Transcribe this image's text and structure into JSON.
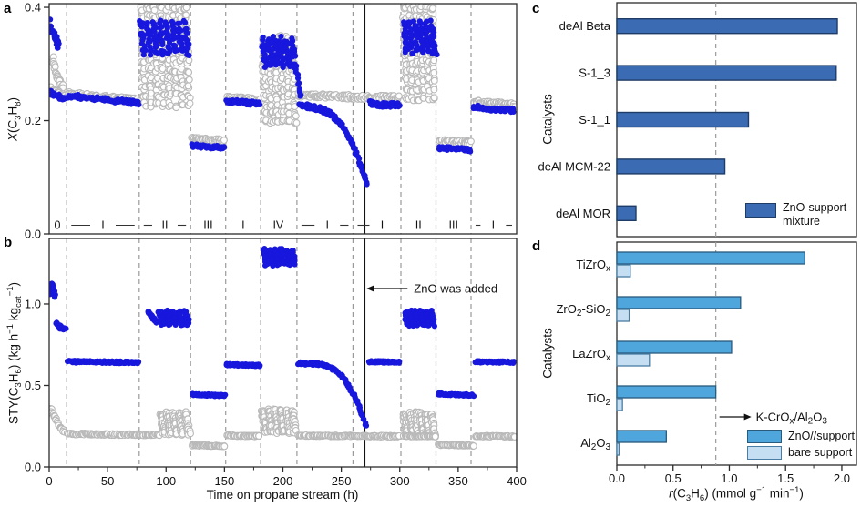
{
  "panel_letters": {
    "a": "a",
    "b": "b",
    "c": "c",
    "d": "d"
  },
  "colors": {
    "blue_point": "#1717dd",
    "gray_point": "#b9b9b9",
    "dashed": "#9a9a9a",
    "axis": "#2b2b2b",
    "c_bar_fill": "#3b6cb3",
    "c_bar_stroke": "#1f3c66",
    "d_main_fill": "#4fa6dc",
    "d_main_stroke": "#2a5a7c",
    "d_bare_fill": "#c5def1",
    "d_bare_stroke": "#4a7da3"
  },
  "chart_data": [
    {
      "id": "a",
      "type": "scatter",
      "ylabel_html": "<i>X</i>(C<sub>3</sub>H<sub>8</sub>)",
      "ylim": [
        0,
        0.4065
      ],
      "yticks": [
        0,
        0.2,
        0.4
      ],
      "ytick_labels": [
        "0.0",
        "0.2",
        "0.4"
      ],
      "xlim": [
        0,
        400
      ],
      "segment_boundaries": [
        15,
        77,
        121,
        151,
        181,
        212,
        260,
        301,
        331,
        361
      ],
      "zno_line_x": 270,
      "segment_labels": [
        {
          "text": "0",
          "t": 7
        },
        {
          "text": "I",
          "t": 46
        },
        {
          "text": "II",
          "t": 99
        },
        {
          "text": "III",
          "t": 136
        },
        {
          "text": "I",
          "t": 166
        },
        {
          "text": "IV",
          "t": 196
        },
        {
          "text": "I",
          "t": 238
        },
        {
          "text": "I",
          "t": 285
        },
        {
          "text": "II",
          "t": 316
        },
        {
          "text": "III",
          "t": 346
        },
        {
          "text": "I",
          "t": 380
        }
      ],
      "gray_segments": [
        {
          "kind": "path",
          "pts": [
            [
              3,
              0.31
            ],
            [
              6,
              0.285
            ],
            [
              9,
              0.268
            ],
            [
              12,
              0.26
            ]
          ],
          "n": 26,
          "j": 0.006
        },
        {
          "kind": "path",
          "pts": [
            [
              1,
              0.257
            ],
            [
              8,
              0.248
            ],
            [
              14,
              0.242
            ]
          ],
          "n": 20,
          "j": 0.004
        },
        {
          "kind": "path",
          "pts": [
            [
              16,
              0.247
            ],
            [
              45,
              0.241
            ],
            [
              77,
              0.235
            ]
          ],
          "n": 90,
          "j": 0.0045
        },
        {
          "kind": "comb",
          "t0": 78,
          "t1": 121,
          "cycles": 8,
          "top": 0.398,
          "bot": 0.228,
          "streaks": 3,
          "n": 12,
          "j": 0.005
        },
        {
          "kind": "path",
          "pts": [
            [
              122,
              0.168
            ],
            [
              150,
              0.164
            ]
          ],
          "n": 50,
          "j": 0.003
        },
        {
          "kind": "path",
          "pts": [
            [
              152,
              0.24
            ],
            [
              180,
              0.236
            ]
          ],
          "n": 50,
          "j": 0.0035
        },
        {
          "kind": "comb",
          "t0": 182,
          "t1": 212,
          "cycles": 6,
          "top": 0.345,
          "bot": 0.198,
          "streaks": 3,
          "n": 11,
          "j": 0.005
        },
        {
          "kind": "path",
          "pts": [
            [
              213,
              0.245
            ],
            [
              255,
              0.242
            ],
            [
              300,
              0.24
            ]
          ],
          "n": 140,
          "j": 0.004
        },
        {
          "kind": "comb",
          "t0": 303,
          "t1": 331,
          "cycles": 6,
          "top": 0.398,
          "bot": 0.24,
          "streaks": 3,
          "n": 11,
          "j": 0.005
        },
        {
          "kind": "path",
          "pts": [
            [
              333,
              0.164
            ],
            [
              361,
              0.161
            ]
          ],
          "n": 48,
          "j": 0.003
        },
        {
          "kind": "path",
          "pts": [
            [
              363,
              0.233
            ],
            [
              398,
              0.228
            ]
          ],
          "n": 60,
          "j": 0.0035
        }
      ],
      "blue_segments": [
        {
          "kind": "path",
          "pts": [
            [
              1,
              0.374
            ],
            [
              3,
              0.352
            ],
            [
              5,
              0.351
            ],
            [
              8,
              0.331
            ]
          ],
          "n": 26,
          "j": 0.007
        },
        {
          "kind": "path",
          "pts": [
            [
              1,
              0.25
            ],
            [
              8,
              0.243
            ],
            [
              14,
              0.237
            ]
          ],
          "n": 20,
          "j": 0.004
        },
        {
          "kind": "path",
          "pts": [
            [
              16,
              0.244
            ],
            [
              45,
              0.238
            ],
            [
              77,
              0.231
            ]
          ],
          "n": 85,
          "j": 0.004
        },
        {
          "kind": "comb",
          "t0": 78,
          "t1": 121,
          "cycles": 8,
          "top": 0.372,
          "bot": 0.32,
          "streaks": 2,
          "n": 8,
          "j": 0.005
        },
        {
          "kind": "path",
          "pts": [
            [
              122,
              0.156
            ],
            [
              150,
              0.152
            ]
          ],
          "n": 50,
          "j": 0.003
        },
        {
          "kind": "path",
          "pts": [
            [
              152,
              0.234
            ],
            [
              180,
              0.23
            ]
          ],
          "n": 50,
          "j": 0.0035
        },
        {
          "kind": "comb",
          "t0": 182,
          "t1": 212,
          "cycles": 6,
          "top": 0.344,
          "bot": 0.298,
          "streaks": 2,
          "n": 8,
          "j": 0.005
        },
        {
          "kind": "path",
          "pts": [
            [
              210,
              0.3
            ],
            [
              214,
              0.262
            ],
            [
              216,
              0.24
            ]
          ],
          "n": 14,
          "j": 0.005
        },
        {
          "kind": "path",
          "pts": [
            [
              214,
              0.228
            ],
            [
              224,
              0.224
            ],
            [
              232,
              0.22
            ],
            [
              239,
              0.214
            ],
            [
              245,
              0.204
            ],
            [
              250,
              0.192
            ],
            [
              255,
              0.177
            ],
            [
              259,
              0.16
            ],
            [
              263,
              0.142
            ],
            [
              266,
              0.125
            ],
            [
              269,
              0.105
            ],
            [
              272,
              0.088
            ]
          ],
          "n": 120,
          "j": 0.004
        },
        {
          "kind": "path",
          "pts": [
            [
              274,
              0.231
            ],
            [
              285,
              0.228
            ],
            [
              300,
              0.227
            ]
          ],
          "n": 50,
          "j": 0.004
        },
        {
          "kind": "comb",
          "t0": 303,
          "t1": 331,
          "cycles": 6,
          "top": 0.372,
          "bot": 0.322,
          "streaks": 2,
          "n": 8,
          "j": 0.005
        },
        {
          "kind": "path",
          "pts": [
            [
              327,
              0.345
            ],
            [
              331,
              0.315
            ]
          ],
          "n": 10,
          "j": 0.005
        },
        {
          "kind": "path",
          "pts": [
            [
              333,
              0.152
            ],
            [
              361,
              0.148
            ]
          ],
          "n": 48,
          "j": 0.003
        },
        {
          "kind": "path",
          "pts": [
            [
              363,
              0.225
            ],
            [
              380,
              0.22
            ],
            [
              398,
              0.218
            ]
          ],
          "n": 60,
          "j": 0.0035
        }
      ]
    },
    {
      "id": "b",
      "type": "scatter",
      "ylabel_html": "STY(C<sub>3</sub>H<sub>6</sub>) (kg h<sup>−1</sup> kg<sub>cat</sub><sup>−1</sup>)",
      "xlabel": "Time on propane stream (h)",
      "ylim": [
        0,
        1.402
      ],
      "yticks": [
        0,
        0.5,
        1.0
      ],
      "ytick_labels": [
        "0.0",
        "0.5",
        "1.0"
      ],
      "xticks": [
        0,
        50,
        100,
        150,
        200,
        250,
        300,
        350,
        400
      ],
      "xtick_labels": [
        "0",
        "50",
        "100",
        "150",
        "200",
        "250",
        "300",
        "350",
        "400"
      ],
      "xminor_step": 25,
      "annotation": "ZnO was added",
      "gray_segments": [
        {
          "kind": "path",
          "pts": [
            [
              1,
              0.355
            ],
            [
              4,
              0.32
            ],
            [
              7,
              0.27
            ],
            [
              10,
              0.235
            ],
            [
              13,
              0.215
            ]
          ],
          "n": 22,
          "j": 0.008
        },
        {
          "kind": "path",
          "pts": [
            [
              16,
              0.203
            ],
            [
              55,
              0.199
            ],
            [
              94,
              0.197
            ]
          ],
          "n": 110,
          "j": 0.005
        },
        {
          "kind": "comb",
          "t0": 95,
          "t1": 121,
          "cycles": 5,
          "top": 0.33,
          "bot": 0.205,
          "streaks": 3,
          "n": 10,
          "j": 0.009
        },
        {
          "kind": "path",
          "pts": [
            [
              122,
              0.133
            ],
            [
              150,
              0.128
            ]
          ],
          "n": 50,
          "j": 0.004
        },
        {
          "kind": "path",
          "pts": [
            [
              152,
              0.193
            ],
            [
              180,
              0.189
            ]
          ],
          "n": 50,
          "j": 0.004
        },
        {
          "kind": "comb",
          "t0": 182,
          "t1": 212,
          "cycles": 6,
          "top": 0.35,
          "bot": 0.215,
          "streaks": 3,
          "n": 10,
          "j": 0.009
        },
        {
          "kind": "path",
          "pts": [
            [
              213,
              0.192
            ],
            [
              260,
              0.19
            ],
            [
              300,
              0.188
            ]
          ],
          "n": 130,
          "j": 0.005
        },
        {
          "kind": "comb",
          "t0": 303,
          "t1": 331,
          "cycles": 6,
          "top": 0.33,
          "bot": 0.2,
          "streaks": 3,
          "n": 9,
          "j": 0.009
        },
        {
          "kind": "path",
          "pts": [
            [
              303,
              0.19
            ],
            [
              331,
              0.188
            ]
          ],
          "n": 45,
          "j": 0.004
        },
        {
          "kind": "path",
          "pts": [
            [
              333,
              0.136
            ],
            [
              363,
              0.131
            ]
          ],
          "n": 50,
          "j": 0.004
        },
        {
          "kind": "path",
          "pts": [
            [
              365,
              0.19
            ],
            [
              398,
              0.187
            ]
          ],
          "n": 55,
          "j": 0.004
        }
      ],
      "blue_segments": [
        {
          "kind": "path",
          "pts": [
            [
              1,
              1.05
            ],
            [
              2,
              1.09
            ],
            [
              3,
              1.12
            ],
            [
              4,
              1.08
            ],
            [
              5,
              1.05
            ]
          ],
          "n": 22,
          "j": 0.012
        },
        {
          "kind": "path",
          "pts": [
            [
              6,
              0.885
            ],
            [
              9,
              0.858
            ],
            [
              12,
              0.852
            ],
            [
              14,
              0.85
            ]
          ],
          "n": 26,
          "j": 0.01
        },
        {
          "kind": "path",
          "pts": [
            [
              16,
              0.646
            ],
            [
              45,
              0.644
            ],
            [
              77,
              0.641
            ]
          ],
          "n": 130,
          "j": 0.007
        },
        {
          "kind": "path",
          "pts": [
            [
              84,
              0.952
            ],
            [
              88,
              0.925
            ],
            [
              91,
              0.892
            ]
          ],
          "n": 22,
          "j": 0.008
        },
        {
          "kind": "comb",
          "t0": 94,
          "t1": 121,
          "cycles": 5,
          "top": 0.952,
          "bot": 0.878,
          "streaks": 2,
          "n": 9,
          "j": 0.01
        },
        {
          "kind": "path",
          "pts": [
            [
              122,
              0.445
            ],
            [
              150,
              0.437
            ]
          ],
          "n": 70,
          "j": 0.006
        },
        {
          "kind": "path",
          "pts": [
            [
              152,
              0.628
            ],
            [
              180,
              0.623
            ]
          ],
          "n": 70,
          "j": 0.006
        },
        {
          "kind": "comb",
          "t0": 183,
          "t1": 212,
          "cycles": 6,
          "top": 1.332,
          "bot": 1.245,
          "streaks": 2,
          "n": 9,
          "j": 0.01
        },
        {
          "kind": "path",
          "pts": [
            [
              213,
              0.636
            ],
            [
              226,
              0.633
            ],
            [
              234,
              0.626
            ],
            [
              241,
              0.611
            ],
            [
              247,
              0.583
            ],
            [
              252,
              0.543
            ],
            [
              257,
              0.492
            ],
            [
              261,
              0.437
            ],
            [
              265,
              0.378
            ],
            [
              268,
              0.318
            ],
            [
              271,
              0.253
            ]
          ],
          "n": 115,
          "j": 0.008
        },
        {
          "kind": "path",
          "pts": [
            [
              274,
              0.646
            ],
            [
              300,
              0.643
            ]
          ],
          "n": 60,
          "j": 0.006
        },
        {
          "kind": "comb",
          "t0": 304,
          "t1": 331,
          "cycles": 6,
          "top": 0.952,
          "bot": 0.872,
          "streaks": 2,
          "n": 9,
          "j": 0.01
        },
        {
          "kind": "path",
          "pts": [
            [
              333,
              0.448
            ],
            [
              363,
              0.44
            ]
          ],
          "n": 65,
          "j": 0.006
        },
        {
          "kind": "path",
          "pts": [
            [
              365,
              0.646
            ],
            [
              398,
              0.642
            ]
          ],
          "n": 70,
          "j": 0.006
        }
      ]
    },
    {
      "id": "c",
      "type": "bar",
      "orientation": "horizontal",
      "categories": [
        "deAl Beta",
        "S-1_3",
        "S-1_1",
        "deAl MCM-22",
        "deAl MOR"
      ],
      "values": [
        1.96,
        1.95,
        1.17,
        0.96,
        0.17
      ],
      "xlim": [
        0,
        2.13
      ],
      "ref_line": 0.88,
      "ylabel": "Catalysts",
      "legend_label_html": "ZnO-support<br>mixture"
    },
    {
      "id": "d",
      "type": "bar",
      "orientation": "horizontal",
      "categories_sub": [
        "TiZrO|x",
        "ZrO|2|-SiO|2",
        "LaZrO|x",
        "TiO|2",
        "Al|2|O|3"
      ],
      "series": [
        {
          "name": "ZnO//support",
          "values": [
            1.67,
            1.1,
            1.02,
            0.88,
            0.44
          ]
        },
        {
          "name": "bare support",
          "values": [
            0.12,
            0.11,
            0.29,
            0.05,
            0.02
          ]
        }
      ],
      "xlim": [
        0,
        2.13
      ],
      "xticks": [
        0,
        0.5,
        1.0,
        1.5,
        2.0
      ],
      "xtick_labels": [
        "0.0",
        "0.5",
        "1.0",
        "1.5",
        "2.0"
      ],
      "xminor_step": 0.25,
      "ref_line": 0.88,
      "ref_label_sub": "K-CrO|x|/Al|2|O|3",
      "ylabel": "Catalysts",
      "xlabel_html": "<i>r</i>(C<sub>3</sub>H<sub>6</sub>) (mmol g<sup>−1</sup> min<sup>−1</sup>)"
    }
  ]
}
